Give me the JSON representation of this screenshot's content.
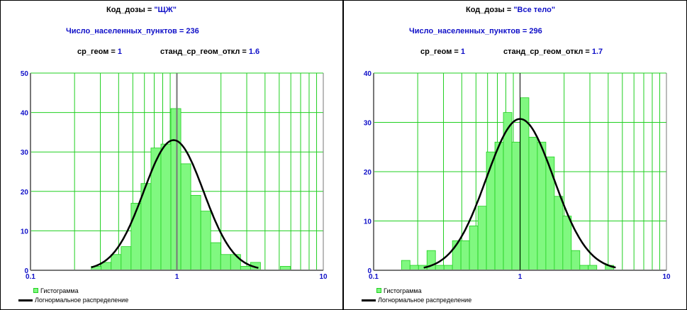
{
  "chart_data": [
    {
      "type": "bar",
      "title_label": "Код_дозы = ",
      "title_value": "\"ЩЖ\"",
      "count_label": "Число_населенных_пунктов = 236",
      "gm_label": "ср_геом = ",
      "gm_value": "1",
      "gsd_label": "станд_ср_геом_откл = ",
      "gsd_value": "1.6",
      "xscale": "log",
      "xlim": [
        0.1,
        10
      ],
      "ylim": [
        0,
        50
      ],
      "xticks": [
        "0.1",
        "1",
        "10"
      ],
      "yticks": [
        "0",
        "10",
        "20",
        "30",
        "40",
        "50"
      ],
      "bin_start": 0.26,
      "bin_log_width": 0.068,
      "values": [
        1,
        2,
        4,
        6,
        17,
        22,
        31,
        32,
        41,
        27,
        19,
        15,
        7,
        4,
        4,
        1,
        2,
        0,
        0,
        1,
        0
      ],
      "curve": {
        "gm": 0.95,
        "gsd": 1.6,
        "peak": 33,
        "xmin": 0.26,
        "xmax": 3.6
      },
      "legend": [
        "Гистограмма",
        "Логнормальное распределение"
      ],
      "grid": true
    },
    {
      "type": "bar",
      "title_label": "Код_дозы = ",
      "title_value": "\"Все тело\"",
      "count_label": "Число_населенных_пунктов = 296",
      "gm_label": "ср_геом = ",
      "gm_value": "1",
      "gsd_label": "станд_ср_геом_откл = ",
      "gsd_value": "1.7",
      "xscale": "log",
      "xlim": [
        0.1,
        10
      ],
      "ylim": [
        0,
        40
      ],
      "xticks": [
        "0.1",
        "1",
        "10"
      ],
      "yticks": [
        "0",
        "10",
        "20",
        "30",
        "40"
      ],
      "bin_start": 0.155,
      "bin_log_width": 0.058,
      "values": [
        2,
        1,
        1,
        4,
        1,
        1,
        6,
        6,
        9,
        13,
        24,
        26,
        32,
        26,
        35,
        27,
        26,
        23,
        15,
        11,
        4,
        1,
        1,
        0,
        1
      ],
      "curve": {
        "gm": 1.0,
        "gsd": 1.7,
        "peak": 30.7,
        "xmin": 0.22,
        "xmax": 4.5
      },
      "legend": [
        "Гистограмма",
        "Логнормальное распределение"
      ],
      "grid": true
    }
  ],
  "colors": {
    "bar": "#80f880",
    "grid": "#20d020",
    "curve": "#000000",
    "label": "#1010c8"
  }
}
